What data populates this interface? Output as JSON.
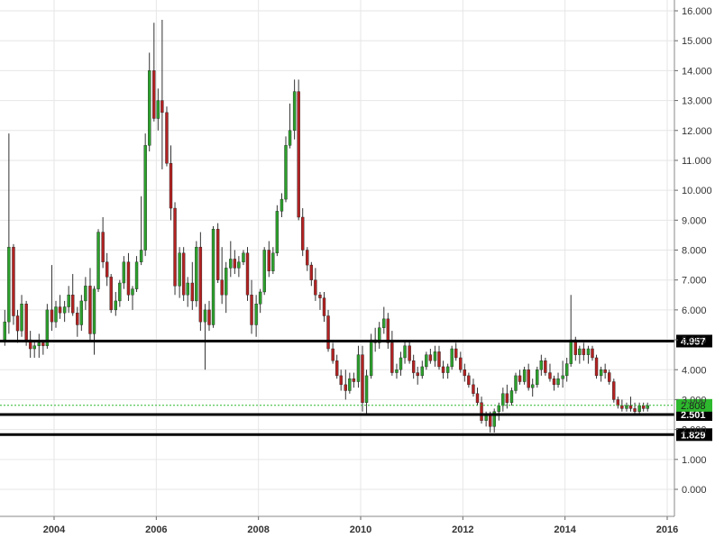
{
  "chart_data": {
    "type": "candlestick",
    "title": "",
    "xlabel": "",
    "ylabel": "",
    "ylim": [
      -0.8,
      16.3
    ],
    "xlim": [
      2003.0,
      2016.0
    ],
    "grid": true,
    "y_ticks": [
      "16.000",
      "15.000",
      "14.000",
      "13.000",
      "12.000",
      "11.000",
      "10.000",
      "9.000",
      "8.000",
      "7.000",
      "6.000",
      "5.000",
      "4.000",
      "3.000",
      "2.000",
      "1.000",
      "0.000"
    ],
    "x_ticks": [
      {
        "value": 2004,
        "label": "2004"
      },
      {
        "value": 2006,
        "label": "2006"
      },
      {
        "value": 2008,
        "label": "2008"
      },
      {
        "value": 2010,
        "label": "2010"
      },
      {
        "value": 2012,
        "label": "2012"
      },
      {
        "value": 2014,
        "label": "2014"
      },
      {
        "value": 2016,
        "label": "2016"
      }
    ],
    "horizontal_lines": [
      {
        "value": 4.957,
        "label": "4.957",
        "color": "#000000"
      },
      {
        "value": 2.501,
        "label": "2.501",
        "color": "#000000"
      },
      {
        "value": 1.829,
        "label": "1.829",
        "color": "#000000"
      }
    ],
    "current_price": {
      "value": 2.808,
      "label": "2.808",
      "color": "#2db82d"
    },
    "colors": {
      "up": "#2ca02c",
      "down": "#b22222",
      "wick": "#333333",
      "grid": "#e6e6e6"
    },
    "candles": [
      [
        2003.0,
        5.0,
        6.0,
        4.8,
        5.6
      ],
      [
        2003.08,
        5.6,
        11.9,
        5.2,
        8.1
      ],
      [
        2003.17,
        8.1,
        8.2,
        5.5,
        5.8
      ],
      [
        2003.25,
        5.8,
        6.0,
        4.9,
        5.3
      ],
      [
        2003.33,
        5.3,
        6.5,
        5.1,
        6.2
      ],
      [
        2003.42,
        6.2,
        6.3,
        4.8,
        5.0
      ],
      [
        2003.5,
        5.0,
        5.3,
        4.4,
        4.7
      ],
      [
        2003.58,
        4.7,
        5.0,
        4.4,
        4.8
      ],
      [
        2003.67,
        4.8,
        5.2,
        4.4,
        4.9
      ],
      [
        2003.75,
        4.9,
        5.0,
        4.5,
        4.8
      ],
      [
        2003.83,
        4.8,
        6.2,
        4.7,
        6.0
      ],
      [
        2003.92,
        6.0,
        7.5,
        5.3,
        5.6
      ],
      [
        2004.0,
        5.6,
        6.3,
        5.4,
        6.1
      ],
      [
        2004.08,
        6.1,
        6.5,
        5.7,
        5.9
      ],
      [
        2004.17,
        5.9,
        6.3,
        5.6,
        6.1
      ],
      [
        2004.25,
        6.1,
        6.8,
        5.9,
        6.5
      ],
      [
        2004.33,
        6.5,
        7.2,
        5.8,
        5.9
      ],
      [
        2004.42,
        5.9,
        6.1,
        5.1,
        5.5
      ],
      [
        2004.5,
        5.5,
        6.5,
        5.3,
        6.3
      ],
      [
        2004.58,
        6.3,
        7.1,
        6.0,
        6.8
      ],
      [
        2004.67,
        6.8,
        7.4,
        5.0,
        5.2
      ],
      [
        2004.75,
        5.2,
        6.8,
        4.5,
        6.7
      ],
      [
        2004.83,
        6.7,
        8.7,
        6.6,
        8.6
      ],
      [
        2004.92,
        8.6,
        9.1,
        7.4,
        7.6
      ],
      [
        2005.0,
        7.6,
        7.9,
        6.8,
        7.1
      ],
      [
        2005.08,
        7.1,
        7.2,
        5.9,
        6.0
      ],
      [
        2005.17,
        6.0,
        6.6,
        5.8,
        6.3
      ],
      [
        2005.25,
        6.3,
        7.0,
        6.1,
        6.9
      ],
      [
        2005.33,
        6.9,
        7.8,
        6.7,
        7.6
      ],
      [
        2005.42,
        7.6,
        7.9,
        6.3,
        6.5
      ],
      [
        2005.5,
        6.5,
        6.8,
        6.0,
        6.7
      ],
      [
        2005.58,
        6.7,
        7.8,
        6.6,
        7.6
      ],
      [
        2005.67,
        7.6,
        9.8,
        7.5,
        8.0
      ],
      [
        2005.75,
        8.0,
        11.9,
        7.8,
        11.5
      ],
      [
        2005.83,
        11.5,
        14.6,
        11.3,
        14.0
      ],
      [
        2005.92,
        14.0,
        15.6,
        12.3,
        12.4
      ],
      [
        2006.0,
        12.4,
        13.4,
        12.0,
        13.0
      ],
      [
        2006.08,
        13.0,
        15.7,
        10.7,
        12.6
      ],
      [
        2006.17,
        12.6,
        12.8,
        10.8,
        10.9
      ],
      [
        2006.25,
        10.9,
        11.5,
        9.0,
        9.4
      ],
      [
        2006.33,
        9.4,
        9.6,
        6.5,
        6.8
      ],
      [
        2006.42,
        6.8,
        8.1,
        6.4,
        7.9
      ],
      [
        2006.5,
        7.9,
        8.1,
        6.3,
        6.5
      ],
      [
        2006.58,
        6.5,
        7.1,
        6.1,
        6.9
      ],
      [
        2006.67,
        6.9,
        7.6,
        6.0,
        6.3
      ],
      [
        2006.75,
        6.3,
        8.3,
        6.1,
        8.1
      ],
      [
        2006.83,
        8.1,
        8.6,
        5.3,
        5.6
      ],
      [
        2006.92,
        5.6,
        6.2,
        4.0,
        6.0
      ],
      [
        2007.0,
        6.0,
        6.3,
        5.3,
        5.5
      ],
      [
        2007.08,
        5.5,
        8.8,
        5.4,
        8.7
      ],
      [
        2007.17,
        8.7,
        8.9,
        6.9,
        7.0
      ],
      [
        2007.25,
        7.0,
        8.1,
        6.2,
        6.5
      ],
      [
        2007.33,
        6.5,
        7.6,
        5.9,
        7.4
      ],
      [
        2007.42,
        7.4,
        8.3,
        7.1,
        7.7
      ],
      [
        2007.5,
        7.7,
        8.0,
        7.2,
        7.4
      ],
      [
        2007.58,
        7.4,
        7.8,
        7.1,
        7.6
      ],
      [
        2007.67,
        7.6,
        8.0,
        7.5,
        7.9
      ],
      [
        2007.75,
        7.9,
        8.1,
        6.3,
        6.5
      ],
      [
        2007.83,
        6.5,
        7.0,
        5.2,
        5.5
      ],
      [
        2007.92,
        5.5,
        6.5,
        5.1,
        6.2
      ],
      [
        2008.0,
        6.2,
        6.7,
        5.9,
        6.6
      ],
      [
        2008.08,
        6.6,
        8.1,
        6.5,
        8.0
      ],
      [
        2008.17,
        8.0,
        8.3,
        7.1,
        7.3
      ],
      [
        2008.25,
        7.3,
        8.1,
        7.2,
        7.9
      ],
      [
        2008.33,
        7.9,
        9.5,
        7.8,
        9.3
      ],
      [
        2008.42,
        9.3,
        9.9,
        9.1,
        9.7
      ],
      [
        2008.5,
        9.7,
        11.8,
        9.6,
        11.5
      ],
      [
        2008.58,
        11.5,
        12.9,
        11.4,
        12.0
      ],
      [
        2008.67,
        12.0,
        13.7,
        11.7,
        13.3
      ],
      [
        2008.75,
        13.3,
        13.7,
        9.0,
        9.1
      ],
      [
        2008.83,
        9.1,
        9.4,
        7.8,
        8.0
      ],
      [
        2008.92,
        8.0,
        8.1,
        7.3,
        7.5
      ],
      [
        2009.0,
        7.5,
        7.6,
        6.8,
        7.0
      ],
      [
        2009.08,
        7.0,
        7.4,
        6.3,
        6.5
      ],
      [
        2009.17,
        6.5,
        6.6,
        6.0,
        6.4
      ],
      [
        2009.25,
        6.4,
        6.6,
        5.6,
        5.8
      ],
      [
        2009.33,
        5.8,
        6.0,
        4.6,
        4.7
      ],
      [
        2009.42,
        4.7,
        4.9,
        4.2,
        4.3
      ],
      [
        2009.5,
        4.3,
        4.5,
        3.7,
        3.8
      ],
      [
        2009.58,
        3.8,
        4.0,
        3.3,
        3.5
      ],
      [
        2009.67,
        3.5,
        4.0,
        3.0,
        3.3
      ],
      [
        2009.75,
        3.3,
        3.9,
        3.2,
        3.7
      ],
      [
        2009.83,
        3.7,
        3.9,
        3.4,
        3.6
      ],
      [
        2009.92,
        3.6,
        4.8,
        3.4,
        4.5
      ],
      [
        2010.0,
        4.5,
        4.8,
        2.6,
        2.9
      ],
      [
        2010.08,
        2.9,
        4.0,
        2.5,
        3.8
      ],
      [
        2010.17,
        3.8,
        5.2,
        3.7,
        5.0
      ],
      [
        2010.25,
        5.0,
        5.4,
        4.6,
        4.9
      ],
      [
        2010.33,
        4.9,
        5.6,
        4.7,
        5.4
      ],
      [
        2010.42,
        5.4,
        6.1,
        5.2,
        5.7
      ],
      [
        2010.5,
        5.7,
        5.9,
        4.7,
        4.9
      ],
      [
        2010.58,
        4.9,
        5.3,
        3.8,
        3.9
      ],
      [
        2010.67,
        3.9,
        4.2,
        3.7,
        4.0
      ],
      [
        2010.75,
        4.0,
        4.6,
        3.8,
        4.4
      ],
      [
        2010.83,
        4.4,
        5.0,
        4.2,
        4.8
      ],
      [
        2010.92,
        4.8,
        5.0,
        4.2,
        4.3
      ],
      [
        2011.0,
        4.3,
        4.5,
        3.7,
        3.9
      ],
      [
        2011.08,
        3.9,
        4.1,
        3.5,
        3.8
      ],
      [
        2011.17,
        3.8,
        4.3,
        3.7,
        4.1
      ],
      [
        2011.25,
        4.1,
        4.6,
        4.0,
        4.5
      ],
      [
        2011.33,
        4.5,
        4.7,
        4.2,
        4.3
      ],
      [
        2011.42,
        4.3,
        4.8,
        4.1,
        4.6
      ],
      [
        2011.5,
        4.6,
        4.8,
        4.0,
        4.1
      ],
      [
        2011.58,
        4.1,
        4.3,
        3.7,
        3.9
      ],
      [
        2011.67,
        3.9,
        4.2,
        3.7,
        4.1
      ],
      [
        2011.75,
        4.1,
        4.8,
        4.0,
        4.7
      ],
      [
        2011.83,
        4.7,
        4.9,
        4.3,
        4.4
      ],
      [
        2011.92,
        4.4,
        4.6,
        3.9,
        4.0
      ],
      [
        2012.0,
        4.0,
        4.2,
        3.6,
        3.8
      ],
      [
        2012.08,
        3.8,
        3.9,
        3.4,
        3.5
      ],
      [
        2012.17,
        3.5,
        3.7,
        3.1,
        3.2
      ],
      [
        2012.25,
        3.2,
        3.4,
        2.8,
        2.9
      ],
      [
        2012.33,
        2.9,
        3.1,
        2.2,
        2.3
      ],
      [
        2012.42,
        2.3,
        2.6,
        2.1,
        2.5
      ],
      [
        2012.5,
        2.5,
        2.6,
        1.9,
        2.1
      ],
      [
        2012.58,
        2.1,
        2.7,
        1.9,
        2.6
      ],
      [
        2012.67,
        2.6,
        2.9,
        2.3,
        2.8
      ],
      [
        2012.75,
        2.8,
        3.4,
        2.6,
        3.2
      ],
      [
        2012.83,
        3.2,
        3.5,
        2.7,
        2.9
      ],
      [
        2012.92,
        2.9,
        3.4,
        2.8,
        3.3
      ],
      [
        2013.0,
        3.3,
        3.9,
        3.2,
        3.8
      ],
      [
        2013.08,
        3.8,
        4.0,
        3.5,
        3.6
      ],
      [
        2013.17,
        3.6,
        4.1,
        3.5,
        4.0
      ],
      [
        2013.25,
        4.0,
        4.2,
        3.3,
        3.4
      ],
      [
        2013.33,
        3.4,
        3.7,
        3.1,
        3.5
      ],
      [
        2013.42,
        3.5,
        4.1,
        3.4,
        4.0
      ],
      [
        2013.5,
        4.0,
        4.5,
        3.8,
        4.3
      ],
      [
        2013.58,
        4.3,
        4.4,
        3.8,
        3.9
      ],
      [
        2013.67,
        3.9,
        4.2,
        3.6,
        3.7
      ],
      [
        2013.75,
        3.7,
        3.8,
        3.3,
        3.5
      ],
      [
        2013.83,
        3.5,
        3.9,
        3.4,
        3.7
      ],
      [
        2013.92,
        3.7,
        4.3,
        3.4,
        3.8
      ],
      [
        2014.0,
        3.8,
        4.4,
        3.6,
        4.2
      ],
      [
        2014.08,
        4.2,
        6.5,
        4.1,
        5.0
      ],
      [
        2014.17,
        5.0,
        5.1,
        4.3,
        4.5
      ],
      [
        2014.25,
        4.5,
        4.8,
        4.2,
        4.7
      ],
      [
        2014.33,
        4.7,
        4.9,
        4.3,
        4.5
      ],
      [
        2014.42,
        4.5,
        4.8,
        4.2,
        4.7
      ],
      [
        2014.5,
        4.7,
        4.8,
        4.3,
        4.4
      ],
      [
        2014.58,
        4.4,
        4.5,
        3.7,
        3.8
      ],
      [
        2014.67,
        3.8,
        4.1,
        3.6,
        4.0
      ],
      [
        2014.75,
        4.0,
        4.2,
        3.7,
        3.9
      ],
      [
        2014.83,
        3.9,
        4.0,
        3.5,
        3.6
      ],
      [
        2014.92,
        3.6,
        3.7,
        2.9,
        3.0
      ],
      [
        2015.0,
        3.0,
        3.1,
        2.7,
        2.8
      ],
      [
        2015.08,
        2.8,
        3.0,
        2.6,
        2.7
      ],
      [
        2015.17,
        2.7,
        2.9,
        2.6,
        2.8
      ],
      [
        2015.25,
        2.8,
        3.1,
        2.6,
        2.7
      ],
      [
        2015.33,
        2.7,
        2.9,
        2.5,
        2.6
      ],
      [
        2015.42,
        2.6,
        2.9,
        2.5,
        2.8
      ],
      [
        2015.5,
        2.8,
        2.9,
        2.6,
        2.7
      ],
      [
        2015.58,
        2.7,
        2.9,
        2.6,
        2.8
      ]
    ]
  }
}
